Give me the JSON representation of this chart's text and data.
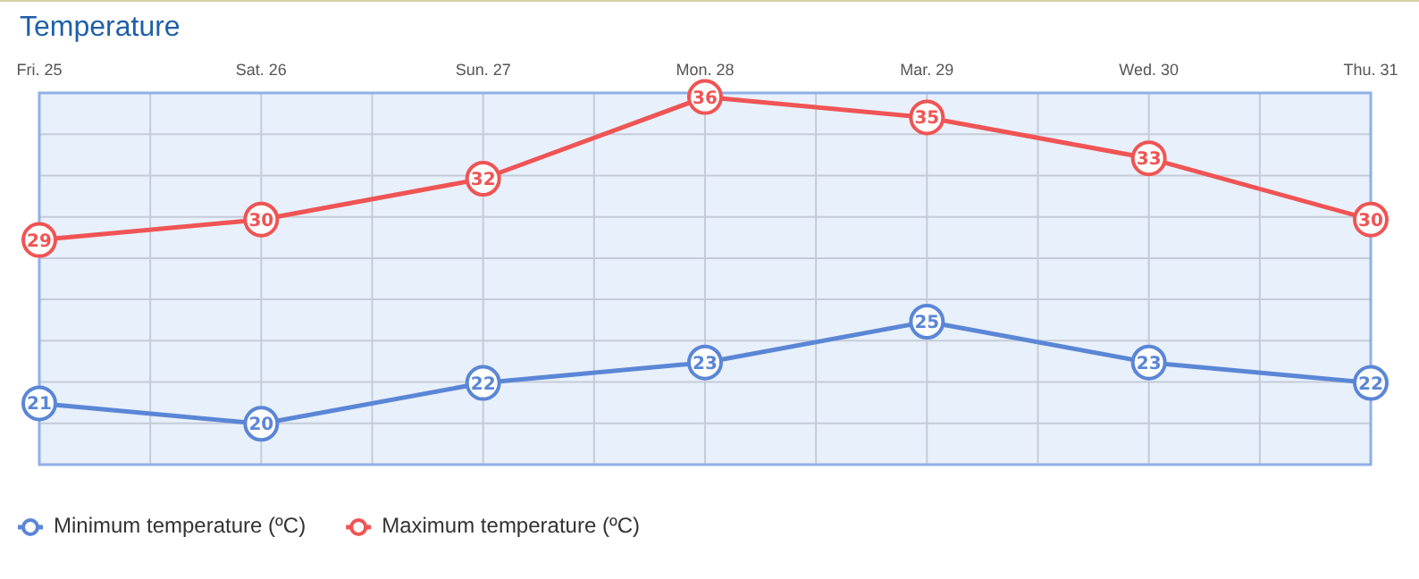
{
  "chart_data": {
    "type": "line",
    "title": "Temperature",
    "categories": [
      "Fri. 25",
      "Sat. 26",
      "Sun. 27",
      "Mon. 28",
      "Mar. 29",
      "Wed. 30",
      "Thu. 31"
    ],
    "series": [
      {
        "name": "Minimum temperature (ºC)",
        "color": "#5b86d6",
        "values": [
          21,
          20,
          22,
          23,
          25,
          23,
          22
        ]
      },
      {
        "name": "Maximum temperature (ºC)",
        "color": "#f05454",
        "values": [
          29,
          30,
          32,
          36,
          35,
          33,
          30
        ]
      }
    ],
    "data_labels": true,
    "marker": "circle",
    "line_style": "solid",
    "grid": true,
    "legend": "bottom left"
  }
}
